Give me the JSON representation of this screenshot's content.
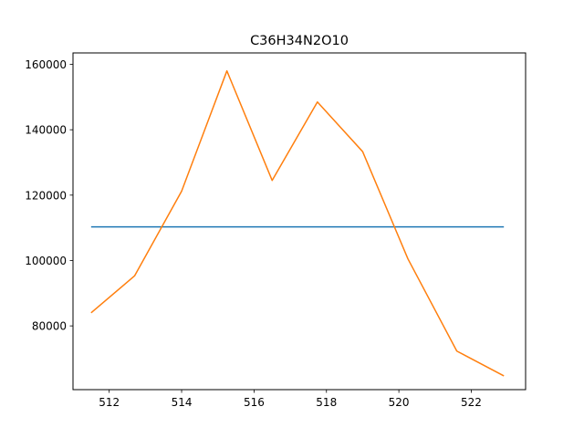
{
  "chart_data": {
    "type": "line",
    "title": "C36H34N2O10",
    "xlabel": "",
    "ylabel": "",
    "xlim": [
      511.0,
      523.5
    ],
    "ylim": [
      60500,
      163500
    ],
    "xticks": [
      512,
      514,
      516,
      518,
      520,
      522
    ],
    "yticks": [
      80000,
      100000,
      120000,
      140000,
      160000
    ],
    "grid": false,
    "series": [
      {
        "color": "#1f77b4",
        "x": [
          511.5,
          522.9
        ],
        "y": [
          110300,
          110300
        ]
      },
      {
        "color": "#ff7f0e",
        "x": [
          511.5,
          512.7,
          514.0,
          515.25,
          516.5,
          517.75,
          519.0,
          520.25,
          521.6,
          522.9
        ],
        "y": [
          84000,
          95300,
          121200,
          158000,
          124500,
          148500,
          133300,
          100500,
          72300,
          64700
        ]
      }
    ]
  }
}
